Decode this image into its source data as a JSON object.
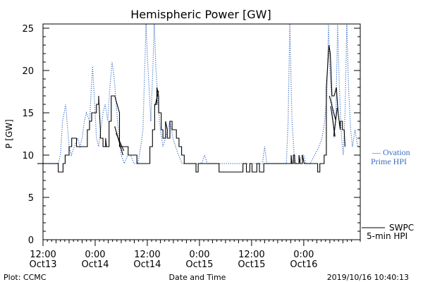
{
  "chart_data": {
    "type": "line",
    "title": "Hemispheric Power [GW]",
    "ylabel": "P [GW]",
    "xlabel": "Date and Time",
    "ylim": [
      0,
      25.5
    ],
    "xlim": [
      0,
      73
    ],
    "y_ticks": [
      0,
      5,
      10,
      15,
      20,
      25
    ],
    "x_ticks": [
      {
        "x": 0,
        "line1": "12:00",
        "line2": "Oct13"
      },
      {
        "x": 12,
        "line1": "0:00",
        "line2": "Oct14"
      },
      {
        "x": 24,
        "line1": "12:00",
        "line2": "Oct14"
      },
      {
        "x": 36,
        "line1": "0:00",
        "line2": "Oct15"
      },
      {
        "x": 48,
        "line1": "12:00",
        "line2": "Oct15"
      },
      {
        "x": 60,
        "line1": "0:00",
        "line2": "Oct16"
      }
    ],
    "grid": false,
    "series": [
      {
        "name": "Ovation Prime HPI",
        "name_line1": "— Ovation",
        "name_line2": "Prime HPI",
        "color": "#3a6fc4",
        "style": "dotted",
        "points": [
          [
            -1.3,
            9
          ],
          [
            3.5,
            9
          ],
          [
            4.0,
            10
          ],
          [
            4.5,
            14
          ],
          [
            5.2,
            16
          ],
          [
            5.7,
            13
          ],
          [
            6.0,
            11
          ],
          [
            6.5,
            10
          ],
          [
            7.2,
            11
          ],
          [
            8.0,
            12
          ],
          [
            8.5,
            11
          ],
          [
            9.0,
            12
          ],
          [
            9.5,
            14
          ],
          [
            10.0,
            15
          ],
          [
            10.7,
            14
          ],
          [
            11.4,
            20.5
          ],
          [
            11.8,
            17
          ],
          [
            12.3,
            12
          ],
          [
            12.8,
            11
          ],
          [
            13.3,
            13
          ],
          [
            13.8,
            15
          ],
          [
            14.3,
            16
          ],
          [
            14.9,
            14
          ],
          [
            15.4,
            18
          ],
          [
            15.9,
            21
          ],
          [
            16.4,
            19
          ],
          [
            17.0,
            15
          ],
          [
            17.5,
            12
          ],
          [
            18.0,
            10
          ],
          [
            18.7,
            9
          ],
          [
            19.5,
            10
          ],
          [
            20.2,
            10
          ],
          [
            20.9,
            9
          ],
          [
            21.8,
            9
          ],
          [
            22.5,
            11
          ],
          [
            23.0,
            13
          ],
          [
            23.7,
            25.5
          ],
          [
            24.0,
            22
          ],
          [
            24.4,
            18
          ],
          [
            24.8,
            14
          ],
          [
            25.2,
            19
          ],
          [
            25.6,
            25.5
          ],
          [
            26.0,
            20
          ],
          [
            26.5,
            16
          ],
          [
            27.0,
            13
          ],
          [
            27.6,
            11
          ],
          [
            28.2,
            12
          ],
          [
            28.7,
            13
          ],
          [
            29.2,
            14
          ],
          [
            29.9,
            12
          ],
          [
            30.5,
            11
          ],
          [
            31.2,
            10
          ],
          [
            32.0,
            9
          ],
          [
            36.5,
            9
          ],
          [
            37.2,
            10
          ],
          [
            37.8,
            9
          ],
          [
            44.0,
            9
          ],
          [
            50.5,
            9
          ],
          [
            51.0,
            11
          ],
          [
            51.5,
            9
          ],
          [
            56.0,
            9
          ],
          [
            56.4,
            14
          ],
          [
            56.8,
            25.5
          ],
          [
            57.3,
            14
          ],
          [
            57.8,
            10
          ],
          [
            58.2,
            9
          ],
          [
            59.0,
            9
          ],
          [
            59.5,
            10
          ],
          [
            60.0,
            10
          ],
          [
            60.5,
            9
          ],
          [
            61.5,
            9
          ],
          [
            62.5,
            10
          ],
          [
            63.5,
            11
          ],
          [
            64.2,
            12
          ],
          [
            64.8,
            14
          ],
          [
            65.3,
            17
          ],
          [
            65.7,
            25.5
          ],
          [
            66.0,
            20
          ],
          [
            66.5,
            16
          ],
          [
            67.0,
            12
          ],
          [
            67.4,
            15
          ],
          [
            67.8,
            25.5
          ],
          [
            68.2,
            18
          ],
          [
            68.7,
            12
          ],
          [
            69.1,
            10
          ],
          [
            69.5,
            15
          ],
          [
            69.9,
            25.5
          ],
          [
            70.3,
            18
          ],
          [
            70.8,
            13
          ],
          [
            71.2,
            11
          ],
          [
            71.8,
            13
          ],
          [
            72.4,
            11
          ],
          [
            73.0,
            11
          ]
        ]
      },
      {
        "name": "SWPC 5-min HPI",
        "name_line1": "SWPC",
        "name_line2": "5-min HPI",
        "color": "#000000",
        "style": "solid",
        "points": [
          [
            -1.3,
            9
          ],
          [
            3.5,
            9
          ],
          [
            3.5,
            8
          ],
          [
            4.6,
            8
          ],
          [
            4.6,
            9
          ],
          [
            5.1,
            9
          ],
          [
            5.1,
            10
          ],
          [
            6.0,
            10
          ],
          [
            6.0,
            11
          ],
          [
            6.6,
            11
          ],
          [
            6.6,
            12
          ],
          [
            7.7,
            12
          ],
          [
            7.7,
            11
          ],
          [
            10.2,
            11
          ],
          [
            10.2,
            13
          ],
          [
            10.7,
            13
          ],
          [
            10.7,
            14
          ],
          [
            11.2,
            14
          ],
          [
            11.2,
            15
          ],
          [
            12.3,
            15
          ],
          [
            12.3,
            16
          ],
          [
            12.8,
            16
          ],
          [
            12.8,
            17
          ],
          [
            13.2,
            13
          ],
          [
            13.2,
            12
          ],
          [
            13.8,
            12
          ],
          [
            13.8,
            11
          ],
          [
            14.4,
            11
          ],
          [
            14.4,
            12
          ],
          [
            14.6,
            11
          ],
          [
            15.2,
            11
          ],
          [
            15.2,
            14
          ],
          [
            15.7,
            14
          ],
          [
            15.7,
            17
          ],
          [
            16.5,
            17
          ],
          [
            17.6,
            15
          ],
          [
            17.6,
            11
          ],
          [
            18.6,
            11
          ],
          [
            19.6,
            11
          ],
          [
            19.6,
            10
          ],
          [
            21.6,
            10
          ],
          [
            21.6,
            9
          ],
          [
            24.6,
            9
          ],
          [
            24.6,
            11
          ],
          [
            25.2,
            11
          ],
          [
            25.2,
            13
          ],
          [
            25.7,
            13
          ],
          [
            25.7,
            16
          ],
          [
            26.2,
            16
          ],
          [
            26.2,
            18
          ],
          [
            26.6,
            17
          ],
          [
            26.6,
            15
          ],
          [
            27.2,
            15
          ],
          [
            27.2,
            13
          ],
          [
            27.6,
            13
          ],
          [
            27.6,
            12
          ],
          [
            28.2,
            12
          ],
          [
            28.2,
            14
          ],
          [
            28.6,
            13
          ],
          [
            28.6,
            12
          ],
          [
            29.2,
            12
          ],
          [
            29.2,
            14
          ],
          [
            29.7,
            14
          ],
          [
            29.7,
            13
          ],
          [
            30.7,
            13
          ],
          [
            30.7,
            12
          ],
          [
            31.3,
            12
          ],
          [
            31.3,
            11
          ],
          [
            31.9,
            11
          ],
          [
            31.9,
            10
          ],
          [
            32.5,
            10
          ],
          [
            32.5,
            9
          ],
          [
            35.2,
            9
          ],
          [
            35.2,
            8
          ],
          [
            35.7,
            8
          ],
          [
            35.7,
            9
          ],
          [
            40.5,
            9
          ],
          [
            40.5,
            8
          ],
          [
            46.0,
            8
          ],
          [
            46.0,
            9
          ],
          [
            46.8,
            9
          ],
          [
            46.8,
            8
          ],
          [
            47.6,
            8
          ],
          [
            47.6,
            9
          ],
          [
            48.1,
            9
          ],
          [
            48.1,
            8
          ],
          [
            49.2,
            8
          ],
          [
            49.2,
            9
          ],
          [
            49.8,
            9
          ],
          [
            49.8,
            8
          ],
          [
            50.8,
            8
          ],
          [
            50.8,
            9
          ],
          [
            57.1,
            9
          ],
          [
            57.1,
            10
          ],
          [
            57.3,
            9
          ],
          [
            57.6,
            9
          ],
          [
            57.6,
            10
          ],
          [
            57.9,
            10
          ],
          [
            57.9,
            9
          ],
          [
            58.9,
            9
          ],
          [
            58.9,
            10
          ],
          [
            59.2,
            9
          ],
          [
            59.7,
            9
          ],
          [
            59.7,
            10
          ],
          [
            60.1,
            9
          ],
          [
            63.2,
            9
          ],
          [
            63.2,
            8
          ],
          [
            63.7,
            8
          ],
          [
            63.7,
            9
          ],
          [
            64.7,
            9
          ],
          [
            64.7,
            10
          ],
          [
            65.2,
            10
          ],
          [
            65.2,
            18
          ],
          [
            65.8,
            23
          ],
          [
            66.1,
            22
          ],
          [
            66.5,
            17
          ],
          [
            67.0,
            17
          ],
          [
            67.5,
            18
          ],
          [
            67.9,
            15
          ],
          [
            68.4,
            13
          ],
          [
            68.4,
            14
          ],
          [
            68.9,
            14
          ],
          [
            68.9,
            13
          ],
          [
            69.3,
            13
          ],
          [
            69.5,
            11
          ]
        ]
      }
    ],
    "segments": [
      {
        "color": "#000000",
        "x1": 16.5,
        "y1": 13.4,
        "x2": 18.4,
        "y2": 10.0
      },
      {
        "color": "#000000",
        "x1": 16.8,
        "y1": 12.6,
        "x2": 18.6,
        "y2": 10.5
      },
      {
        "color": "#000000",
        "x1": 25.8,
        "y1": 15.9,
        "x2": 26.6,
        "y2": 17.6
      },
      {
        "color": "#000000",
        "x1": 65.9,
        "y1": 17.0,
        "x2": 67.3,
        "y2": 14.2
      },
      {
        "color": "#000000",
        "x1": 66.2,
        "y1": 15.8,
        "x2": 67.2,
        "y2": 12.2
      },
      {
        "color": "#000000",
        "x1": 66.9,
        "y1": 12.2,
        "x2": 67.7,
        "y2": 15.6
      }
    ],
    "footer": {
      "left": "Plot: CCMC",
      "timestamp": "2019/10/16 10:40:13"
    }
  }
}
